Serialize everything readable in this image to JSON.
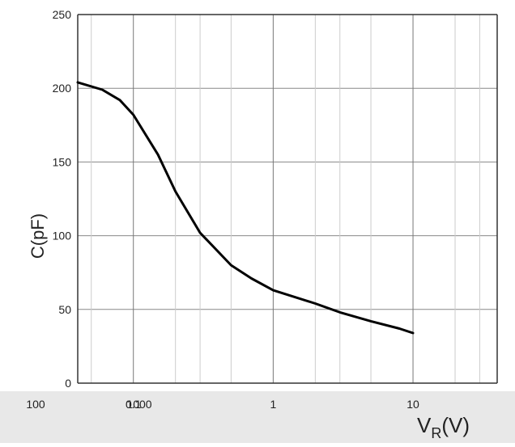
{
  "chart_data": {
    "type": "line",
    "xscale": "log",
    "x_ticks": [
      "0.1",
      "1",
      "10"
    ],
    "x_ticks_extra": [
      "100",
      "1000"
    ],
    "y_ticks": [
      "0",
      "50",
      "100",
      "150",
      "200",
      "250"
    ],
    "ylim": [
      0,
      250
    ],
    "xlim": [
      0.04,
      40
    ],
    "xlabel_main": "V",
    "xlabel_sub": "R",
    "xlabel_unit": "(V)",
    "ylabel": "C(pF)",
    "grid": true,
    "line_color": "#000000",
    "series": [
      {
        "x": [
          0.04,
          0.06,
          0.08,
          0.1,
          0.15,
          0.2,
          0.3,
          0.5,
          0.7,
          1,
          2,
          3,
          5,
          8,
          10
        ],
        "values": [
          204,
          199,
          192,
          182,
          155,
          130,
          102,
          80,
          71,
          63,
          54,
          48,
          42,
          37,
          34
        ]
      }
    ]
  }
}
